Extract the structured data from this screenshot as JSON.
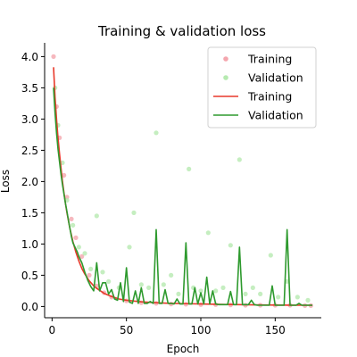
{
  "chart_data": {
    "type": "line",
    "title": "Training & validation loss",
    "xlabel": "Epoch",
    "ylabel": "Loss",
    "xlim": [
      -5,
      181
    ],
    "ylim": [
      -0.18,
      4.22
    ],
    "x_ticks": [
      0,
      50,
      100,
      150
    ],
    "y_ticks": [
      0.0,
      0.5,
      1.0,
      1.5,
      2.0,
      2.5,
      3.0,
      3.5,
      4.0
    ],
    "x_tick_labels": [
      "0",
      "50",
      "100",
      "150"
    ],
    "y_tick_labels": [
      "0.0",
      "0.5",
      "1.0",
      "1.5",
      "2.0",
      "2.5",
      "3.0",
      "3.5",
      "4.0"
    ],
    "grid": false,
    "legend_position": "top-right",
    "legend": [
      {
        "label": "Training",
        "kind": "marker",
        "color": "#f4a6ae"
      },
      {
        "label": "Validation",
        "kind": "marker",
        "color": "#b6eab0"
      },
      {
        "label": "Training",
        "kind": "line",
        "color": "#e8392b"
      },
      {
        "label": "Validation",
        "kind": "line",
        "color": "#2e9a2e"
      }
    ],
    "series": [
      {
        "name": "Training",
        "style": "points",
        "color": "#f4a6ae",
        "x": [
          1,
          3,
          5,
          8,
          10,
          13,
          16,
          20,
          25,
          30,
          35,
          40,
          50,
          60,
          70,
          80,
          90,
          100,
          110,
          120,
          130,
          140,
          150,
          160,
          170,
          174
        ],
        "y": [
          4.0,
          3.2,
          2.7,
          2.1,
          1.75,
          1.4,
          1.1,
          0.8,
          0.5,
          0.33,
          0.22,
          0.15,
          0.09,
          0.06,
          0.05,
          0.04,
          0.035,
          0.03,
          0.03,
          0.025,
          0.02,
          0.02,
          0.02,
          0.02,
          0.015,
          0.015
        ]
      },
      {
        "name": "Validation",
        "style": "points",
        "color": "#b6eab0",
        "x": [
          2,
          4,
          7,
          10,
          14,
          18,
          22,
          26,
          30,
          34,
          38,
          45,
          52,
          55,
          60,
          65,
          70,
          75,
          80,
          85,
          92,
          95,
          100,
          105,
          110,
          115,
          120,
          126,
          130,
          135,
          140,
          147,
          152,
          158,
          165,
          172
        ],
        "y": [
          3.5,
          2.9,
          2.3,
          1.7,
          1.3,
          0.95,
          0.85,
          0.6,
          1.45,
          0.55,
          0.4,
          0.3,
          0.95,
          1.5,
          0.35,
          0.3,
          2.78,
          0.35,
          0.5,
          0.2,
          2.2,
          0.3,
          0.25,
          1.18,
          0.25,
          0.3,
          0.98,
          2.35,
          0.2,
          0.3,
          0.2,
          0.82,
          0.15,
          0.4,
          0.15,
          0.1
        ]
      },
      {
        "name": "Training",
        "style": "line",
        "color": "#e8392b",
        "x": [
          1,
          2,
          3,
          4,
          5,
          6,
          7,
          8,
          9,
          10,
          12,
          14,
          16,
          18,
          20,
          22,
          25,
          28,
          30,
          35,
          40,
          45,
          50,
          60,
          70,
          80,
          90,
          100,
          110,
          120,
          130,
          140,
          150,
          160,
          170,
          175
        ],
        "y": [
          3.83,
          3.35,
          3.0,
          2.7,
          2.45,
          2.22,
          2.0,
          1.82,
          1.65,
          1.5,
          1.25,
          1.04,
          0.87,
          0.73,
          0.61,
          0.52,
          0.41,
          0.33,
          0.29,
          0.21,
          0.16,
          0.12,
          0.1,
          0.075,
          0.06,
          0.05,
          0.045,
          0.04,
          0.035,
          0.032,
          0.028,
          0.025,
          0.023,
          0.021,
          0.02,
          0.02
        ]
      },
      {
        "name": "Validation",
        "style": "line",
        "color": "#2e9a2e",
        "x": [
          1,
          2,
          3,
          4,
          5,
          6,
          7,
          8,
          9,
          10,
          11,
          12,
          13,
          14,
          15,
          16,
          17,
          18,
          19,
          20,
          22,
          24,
          26,
          28,
          30,
          32,
          34,
          36,
          38,
          40,
          42,
          44,
          46,
          48,
          50,
          52,
          54,
          56,
          58,
          60,
          62,
          64,
          66,
          68,
          70,
          72,
          74,
          76,
          78,
          80,
          82,
          84,
          86,
          88,
          90,
          92,
          94,
          96,
          98,
          100,
          102,
          104,
          106,
          108,
          110,
          112,
          114,
          116,
          118,
          120,
          122,
          124,
          126,
          128,
          130,
          132,
          134,
          136,
          138,
          140,
          142,
          144,
          146,
          148,
          150,
          152,
          154,
          156,
          158,
          160,
          162,
          164,
          166,
          168,
          170,
          172,
          174,
          175
        ],
        "y": [
          3.5,
          3.1,
          2.78,
          2.52,
          2.32,
          2.12,
          1.95,
          1.8,
          1.65,
          1.52,
          1.38,
          1.25,
          1.12,
          1.02,
          0.97,
          0.92,
          0.87,
          0.8,
          0.75,
          0.7,
          0.55,
          0.42,
          0.32,
          0.25,
          0.7,
          0.25,
          0.38,
          0.38,
          0.2,
          0.27,
          0.12,
          0.1,
          0.38,
          0.08,
          0.62,
          0.07,
          0.05,
          0.25,
          0.05,
          0.3,
          0.05,
          0.05,
          0.08,
          0.05,
          1.23,
          0.05,
          0.05,
          0.27,
          0.05,
          0.05,
          0.04,
          0.12,
          0.04,
          0.04,
          1.02,
          0.04,
          0.04,
          0.3,
          0.04,
          0.22,
          0.04,
          0.47,
          0.04,
          0.25,
          0.04,
          0.03,
          0.03,
          0.03,
          0.03,
          0.24,
          0.03,
          0.03,
          0.95,
          0.03,
          0.03,
          0.03,
          0.1,
          0.03,
          0.02,
          0.02,
          0.02,
          0.02,
          0.02,
          0.33,
          0.02,
          0.02,
          0.02,
          0.02,
          1.23,
          0.02,
          0.02,
          0.02,
          0.05,
          0.02,
          0.02,
          0.02,
          0.02,
          0.02
        ]
      }
    ]
  }
}
